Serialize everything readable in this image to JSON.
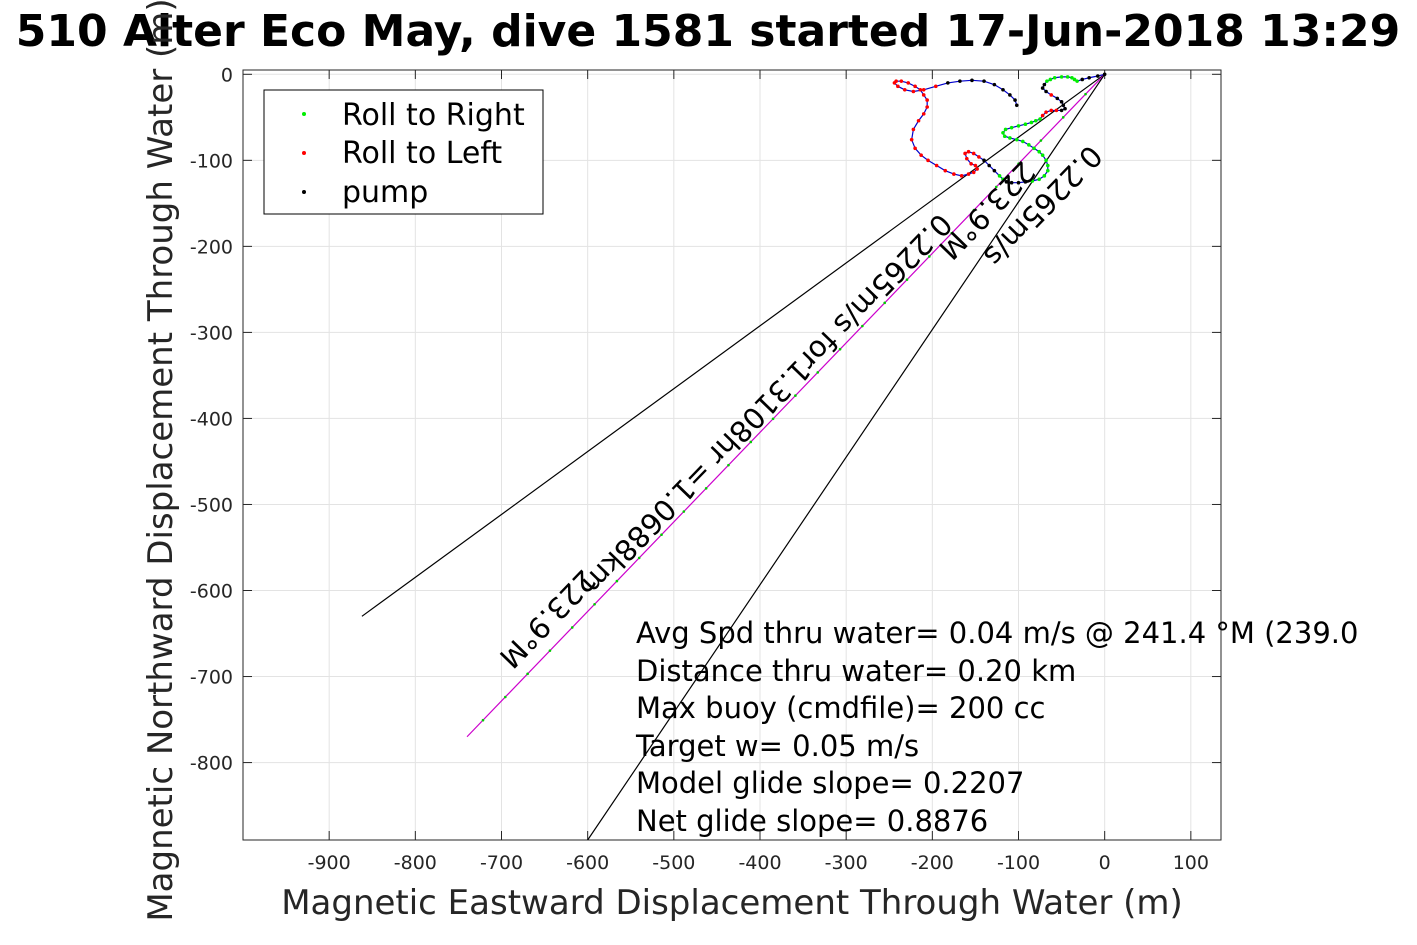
{
  "chart_data": {
    "type": "line",
    "title": "510 Alter Eco May, dive 1581 started 17-Jun-2018 13:29",
    "xlabel": "Magnetic Eastward Displacement Through Water (m)",
    "ylabel": "Magnetic Northward Displacement Through Water (m)",
    "xlim": [
      -1000,
      135
    ],
    "ylim": [
      -890,
      5
    ],
    "xticks": [
      -900,
      -800,
      -700,
      -600,
      -500,
      -400,
      -300,
      -200,
      -100,
      0,
      100
    ],
    "yticks": [
      0,
      -100,
      -200,
      -300,
      -400,
      -500,
      -600,
      -700,
      -800
    ],
    "grid": true,
    "legend_position": "top-left",
    "legend": [
      {
        "name": "Roll to Right",
        "color": "#00ee00"
      },
      {
        "name": "Roll to Left",
        "color": "#ff0000"
      },
      {
        "name": "pump",
        "color": "#000000"
      }
    ],
    "bearing_lines": [
      {
        "x": [
          0,
          -862
        ],
        "y": [
          0,
          -630
        ],
        "color": "#000000"
      },
      {
        "x": [
          0,
          -740
        ],
        "y": [
          0,
          -770
        ],
        "color": "#cc00cc"
      },
      {
        "x": [
          0,
          -600
        ],
        "y": [
          0,
          -890
        ],
        "color": "#000000"
      }
    ],
    "bearing_labels": [
      {
        "text": "223.9°M",
        "x": -655,
        "y": -625,
        "rotation": 134.1
      },
      {
        "text": "0.2265m/s for1.3108hr =1.0688km",
        "x": -400,
        "y": -375,
        "rotation": 134.1
      },
      {
        "text": "223.9°M",
        "x": -145,
        "y": -150,
        "rotation": 134.1
      },
      {
        "text": "0.2265m/s",
        "x": -80,
        "y": -145,
        "rotation": 134.1
      }
    ],
    "track": {
      "color": "#0000cc",
      "x": [
        0,
        -8,
        -18,
        -26,
        -32,
        -35,
        -38,
        -43,
        -50,
        -58,
        -63,
        -67,
        -70,
        -72,
        -68,
        -62,
        -55,
        -50,
        -48,
        -46,
        -50,
        -56,
        -62,
        -68,
        -72,
        -75,
        -80,
        -85,
        -92,
        -100,
        -108,
        -115,
        -118,
        -116,
        -110,
        -102,
        -95,
        -88,
        -82,
        -76,
        -72,
        -68,
        -66,
        -66,
        -70,
        -76,
        -84,
        -92,
        -100,
        -108,
        -114,
        -118,
        -122,
        -128,
        -134,
        -140,
        -146,
        -152,
        -158,
        -162,
        -160,
        -155,
        -150,
        -148,
        -152,
        -158,
        -166,
        -175,
        -185,
        -195,
        -205,
        -213,
        -220,
        -224,
        -222,
        -216,
        -210,
        -206,
        -206,
        -210,
        -214,
        -220,
        -228,
        -236,
        -242,
        -244,
        -240,
        -232,
        -222,
        -210,
        -196,
        -182,
        -168,
        -154,
        -140,
        -128,
        -118,
        -110,
        -104,
        -102
      ],
      "y": [
        0,
        -2,
        -4,
        -6,
        -8,
        -6,
        -4,
        -3,
        -3,
        -4,
        -6,
        -8,
        -12,
        -16,
        -20,
        -24,
        -28,
        -32,
        -36,
        -40,
        -42,
        -42,
        -42,
        -44,
        -48,
        -52,
        -54,
        -56,
        -58,
        -60,
        -62,
        -64,
        -68,
        -72,
        -74,
        -76,
        -78,
        -82,
        -86,
        -90,
        -94,
        -100,
        -106,
        -112,
        -118,
        -122,
        -124,
        -125,
        -126,
        -126,
        -125,
        -122,
        -118,
        -112,
        -106,
        -100,
        -96,
        -92,
        -90,
        -92,
        -98,
        -104,
        -106,
        -110,
        -114,
        -116,
        -118,
        -116,
        -112,
        -106,
        -100,
        -94,
        -86,
        -76,
        -64,
        -54,
        -46,
        -38,
        -30,
        -24,
        -18,
        -14,
        -10,
        -8,
        -8,
        -10,
        -14,
        -18,
        -20,
        -18,
        -14,
        -10,
        -8,
        -7,
        -8,
        -12,
        -18,
        -24,
        -30,
        -36
      ]
    },
    "annotations": [
      "Avg Spd thru water=  0.04 m/s @ 241.4 °M (239.0",
      "Distance thru water=  0.20 km",
      "Max buoy (cmdfile)= 200 cc",
      "Target w= 0.05 m/s",
      "Model glide slope= 0.2207",
      "Net glide slope= 0.8876"
    ]
  }
}
